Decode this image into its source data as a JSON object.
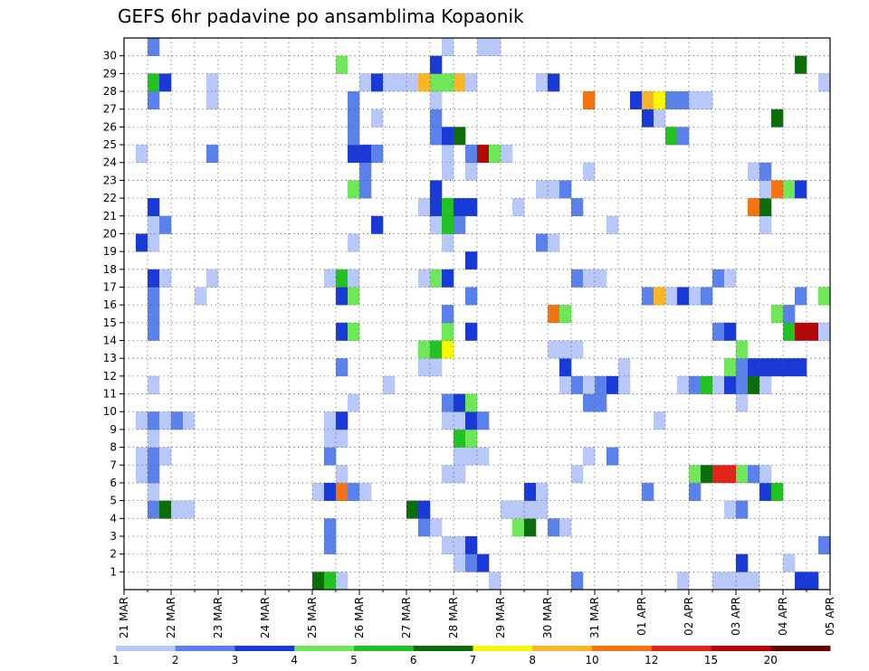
{
  "chart_data": {
    "type": "heatmap",
    "title": "GEFS 6hr padavine po ansamblima Kopaonik",
    "xlabel": "",
    "ylabel": "",
    "x_tick_labels": [
      "21 MAR",
      "22 MAR",
      "23 MAR",
      "24 MAR",
      "25 MAR",
      "26 MAR",
      "27 MAR",
      "28 MAR",
      "29 MAR",
      "30 MAR",
      "31 MAR",
      "01 APR",
      "02 APR",
      "03 APR",
      "04 APR",
      "05 APR"
    ],
    "y_tick_labels": [
      "1",
      "2",
      "3",
      "4",
      "5",
      "6",
      "7",
      "8",
      "9",
      "10",
      "11",
      "12",
      "13",
      "14",
      "15",
      "16",
      "17",
      "18",
      "19",
      "20",
      "21",
      "22",
      "23",
      "24",
      "25",
      "26",
      "27",
      "28",
      "29",
      "30"
    ],
    "steps_per_day": 4,
    "n_steps": 60,
    "n_members": 31,
    "grid": true,
    "colorbar": {
      "labels": [
        "1",
        "2",
        "3",
        "4",
        "5",
        "6",
        "7",
        "8",
        "10",
        "12",
        "15",
        "20"
      ],
      "colors": [
        "#b8c8f8",
        "#5a82ea",
        "#1a3ad8",
        "#6ee858",
        "#22c222",
        "#0b6e0b",
        "#f8f800",
        "#fcb428",
        "#f47414",
        "#e0261a",
        "#b40808",
        "#640000"
      ]
    },
    "cells": [
      {
        "t": 16,
        "m": 0,
        "c": 5
      },
      {
        "t": 17,
        "m": 0,
        "c": 4
      },
      {
        "t": 18,
        "m": 0,
        "c": 0
      },
      {
        "t": 31,
        "m": 0,
        "c": 0
      },
      {
        "t": 38,
        "m": 0,
        "c": 1
      },
      {
        "t": 47,
        "m": 0,
        "c": 0
      },
      {
        "t": 50,
        "m": 0,
        "c": 0
      },
      {
        "t": 51,
        "m": 0,
        "c": 0
      },
      {
        "t": 52,
        "m": 0,
        "c": 0
      },
      {
        "t": 53,
        "m": 0,
        "c": 0
      },
      {
        "t": 57,
        "m": 0,
        "c": 2
      },
      {
        "t": 58,
        "m": 0,
        "c": 2
      },
      {
        "t": 28,
        "m": 1,
        "c": 0
      },
      {
        "t": 29,
        "m": 1,
        "c": 1
      },
      {
        "t": 30,
        "m": 1,
        "c": 2
      },
      {
        "t": 52,
        "m": 1,
        "c": 2
      },
      {
        "t": 56,
        "m": 1,
        "c": 0
      },
      {
        "t": 17,
        "m": 2,
        "c": 1
      },
      {
        "t": 27,
        "m": 2,
        "c": 0
      },
      {
        "t": 28,
        "m": 2,
        "c": 0
      },
      {
        "t": 29,
        "m": 2,
        "c": 2
      },
      {
        "t": 59,
        "m": 2,
        "c": 1
      },
      {
        "t": 17,
        "m": 3,
        "c": 1
      },
      {
        "t": 25,
        "m": 3,
        "c": 1
      },
      {
        "t": 26,
        "m": 3,
        "c": 0
      },
      {
        "t": 33,
        "m": 3,
        "c": 3
      },
      {
        "t": 34,
        "m": 3,
        "c": 5
      },
      {
        "t": 36,
        "m": 3,
        "c": 1
      },
      {
        "t": 37,
        "m": 3,
        "c": 0
      },
      {
        "t": 2,
        "m": 4,
        "c": 1
      },
      {
        "t": 3,
        "m": 4,
        "c": 5
      },
      {
        "t": 4,
        "m": 4,
        "c": 0
      },
      {
        "t": 5,
        "m": 4,
        "c": 0
      },
      {
        "t": 24,
        "m": 4,
        "c": 5
      },
      {
        "t": 25,
        "m": 4,
        "c": 2
      },
      {
        "t": 32,
        "m": 4,
        "c": 0
      },
      {
        "t": 33,
        "m": 4,
        "c": 0
      },
      {
        "t": 34,
        "m": 4,
        "c": 0
      },
      {
        "t": 35,
        "m": 4,
        "c": 0
      },
      {
        "t": 51,
        "m": 4,
        "c": 0
      },
      {
        "t": 52,
        "m": 4,
        "c": 1
      },
      {
        "t": 2,
        "m": 5,
        "c": 0
      },
      {
        "t": 16,
        "m": 5,
        "c": 0
      },
      {
        "t": 17,
        "m": 5,
        "c": 2
      },
      {
        "t": 18,
        "m": 5,
        "c": 8
      },
      {
        "t": 19,
        "m": 5,
        "c": 1
      },
      {
        "t": 20,
        "m": 5,
        "c": 0
      },
      {
        "t": 34,
        "m": 5,
        "c": 2
      },
      {
        "t": 35,
        "m": 5,
        "c": 0
      },
      {
        "t": 44,
        "m": 5,
        "c": 1
      },
      {
        "t": 48,
        "m": 5,
        "c": 1
      },
      {
        "t": 54,
        "m": 5,
        "c": 2
      },
      {
        "t": 55,
        "m": 5,
        "c": 4
      },
      {
        "t": 1,
        "m": 6,
        "c": 0
      },
      {
        "t": 2,
        "m": 6,
        "c": 1
      },
      {
        "t": 18,
        "m": 6,
        "c": 0
      },
      {
        "t": 27,
        "m": 6,
        "c": 0
      },
      {
        "t": 28,
        "m": 6,
        "c": 0
      },
      {
        "t": 38,
        "m": 6,
        "c": 0
      },
      {
        "t": 48,
        "m": 6,
        "c": 3
      },
      {
        "t": 49,
        "m": 6,
        "c": 5
      },
      {
        "t": 50,
        "m": 6,
        "c": 9
      },
      {
        "t": 51,
        "m": 6,
        "c": 9
      },
      {
        "t": 52,
        "m": 6,
        "c": 3
      },
      {
        "t": 53,
        "m": 6,
        "c": 1
      },
      {
        "t": 54,
        "m": 6,
        "c": 0
      },
      {
        "t": 1,
        "m": 7,
        "c": 0
      },
      {
        "t": 2,
        "m": 7,
        "c": 1
      },
      {
        "t": 3,
        "m": 7,
        "c": 0
      },
      {
        "t": 17,
        "m": 7,
        "c": 1
      },
      {
        "t": 28,
        "m": 7,
        "c": 0
      },
      {
        "t": 29,
        "m": 7,
        "c": 0
      },
      {
        "t": 30,
        "m": 7,
        "c": 0
      },
      {
        "t": 39,
        "m": 7,
        "c": 0
      },
      {
        "t": 41,
        "m": 7,
        "c": 1
      },
      {
        "t": 2,
        "m": 8,
        "c": 0
      },
      {
        "t": 17,
        "m": 8,
        "c": 0
      },
      {
        "t": 18,
        "m": 8,
        "c": 0
      },
      {
        "t": 28,
        "m": 8,
        "c": 4
      },
      {
        "t": 29,
        "m": 8,
        "c": 3
      },
      {
        "t": 1,
        "m": 9,
        "c": 0
      },
      {
        "t": 2,
        "m": 9,
        "c": 1
      },
      {
        "t": 3,
        "m": 9,
        "c": 0
      },
      {
        "t": 4,
        "m": 9,
        "c": 1
      },
      {
        "t": 5,
        "m": 9,
        "c": 0
      },
      {
        "t": 17,
        "m": 9,
        "c": 0
      },
      {
        "t": 18,
        "m": 9,
        "c": 2
      },
      {
        "t": 27,
        "m": 9,
        "c": 0
      },
      {
        "t": 28,
        "m": 9,
        "c": 0
      },
      {
        "t": 29,
        "m": 9,
        "c": 2
      },
      {
        "t": 30,
        "m": 9,
        "c": 1
      },
      {
        "t": 45,
        "m": 9,
        "c": 0
      },
      {
        "t": 19,
        "m": 10,
        "c": 0
      },
      {
        "t": 27,
        "m": 10,
        "c": 1
      },
      {
        "t": 28,
        "m": 10,
        "c": 2
      },
      {
        "t": 29,
        "m": 10,
        "c": 3
      },
      {
        "t": 39,
        "m": 10,
        "c": 1
      },
      {
        "t": 40,
        "m": 10,
        "c": 1
      },
      {
        "t": 52,
        "m": 10,
        "c": 0
      },
      {
        "t": 2,
        "m": 11,
        "c": 0
      },
      {
        "t": 22,
        "m": 11,
        "c": 0
      },
      {
        "t": 37,
        "m": 11,
        "c": 0
      },
      {
        "t": 38,
        "m": 11,
        "c": 1
      },
      {
        "t": 39,
        "m": 11,
        "c": 0
      },
      {
        "t": 40,
        "m": 11,
        "c": 1
      },
      {
        "t": 41,
        "m": 11,
        "c": 2
      },
      {
        "t": 42,
        "m": 11,
        "c": 0
      },
      {
        "t": 47,
        "m": 11,
        "c": 0
      },
      {
        "t": 48,
        "m": 11,
        "c": 1
      },
      {
        "t": 49,
        "m": 11,
        "c": 4
      },
      {
        "t": 50,
        "m": 11,
        "c": 0
      },
      {
        "t": 51,
        "m": 11,
        "c": 2
      },
      {
        "t": 52,
        "m": 11,
        "c": 1
      },
      {
        "t": 53,
        "m": 11,
        "c": 5
      },
      {
        "t": 54,
        "m": 11,
        "c": 0
      },
      {
        "t": 18,
        "m": 12,
        "c": 1
      },
      {
        "t": 25,
        "m": 12,
        "c": 0
      },
      {
        "t": 26,
        "m": 12,
        "c": 0
      },
      {
        "t": 37,
        "m": 12,
        "c": 2
      },
      {
        "t": 42,
        "m": 12,
        "c": 0
      },
      {
        "t": 51,
        "m": 12,
        "c": 3
      },
      {
        "t": 52,
        "m": 12,
        "c": 1
      },
      {
        "t": 53,
        "m": 12,
        "c": 2
      },
      {
        "t": 54,
        "m": 12,
        "c": 2
      },
      {
        "t": 55,
        "m": 12,
        "c": 2
      },
      {
        "t": 56,
        "m": 12,
        "c": 2
      },
      {
        "t": 57,
        "m": 12,
        "c": 2
      },
      {
        "t": 25,
        "m": 13,
        "c": 3
      },
      {
        "t": 26,
        "m": 13,
        "c": 4
      },
      {
        "t": 27,
        "m": 13,
        "c": 6
      },
      {
        "t": 36,
        "m": 13,
        "c": 0
      },
      {
        "t": 37,
        "m": 13,
        "c": 0
      },
      {
        "t": 38,
        "m": 13,
        "c": 0
      },
      {
        "t": 52,
        "m": 13,
        "c": 3
      },
      {
        "t": 2,
        "m": 14,
        "c": 1
      },
      {
        "t": 18,
        "m": 14,
        "c": 2
      },
      {
        "t": 19,
        "m": 14,
        "c": 3
      },
      {
        "t": 27,
        "m": 14,
        "c": 3
      },
      {
        "t": 29,
        "m": 14,
        "c": 2
      },
      {
        "t": 50,
        "m": 14,
        "c": 1
      },
      {
        "t": 51,
        "m": 14,
        "c": 2
      },
      {
        "t": 56,
        "m": 14,
        "c": 4
      },
      {
        "t": 57,
        "m": 14,
        "c": 10
      },
      {
        "t": 58,
        "m": 14,
        "c": 10
      },
      {
        "t": 59,
        "m": 14,
        "c": 0
      },
      {
        "t": 2,
        "m": 15,
        "c": 1
      },
      {
        "t": 27,
        "m": 15,
        "c": 1
      },
      {
        "t": 36,
        "m": 15,
        "c": 8
      },
      {
        "t": 37,
        "m": 15,
        "c": 3
      },
      {
        "t": 55,
        "m": 15,
        "c": 3
      },
      {
        "t": 56,
        "m": 15,
        "c": 1
      },
      {
        "t": 2,
        "m": 16,
        "c": 1
      },
      {
        "t": 6,
        "m": 16,
        "c": 0
      },
      {
        "t": 18,
        "m": 16,
        "c": 2
      },
      {
        "t": 19,
        "m": 16,
        "c": 3
      },
      {
        "t": 29,
        "m": 16,
        "c": 1
      },
      {
        "t": 44,
        "m": 16,
        "c": 1
      },
      {
        "t": 45,
        "m": 16,
        "c": 7
      },
      {
        "t": 46,
        "m": 16,
        "c": 0
      },
      {
        "t": 47,
        "m": 16,
        "c": 2
      },
      {
        "t": 48,
        "m": 16,
        "c": 0
      },
      {
        "t": 49,
        "m": 16,
        "c": 1
      },
      {
        "t": 57,
        "m": 16,
        "c": 1
      },
      {
        "t": 59,
        "m": 16,
        "c": 3
      },
      {
        "t": 60,
        "m": 16,
        "c": 1
      },
      {
        "t": 2,
        "m": 17,
        "c": 2
      },
      {
        "t": 3,
        "m": 17,
        "c": 0
      },
      {
        "t": 7,
        "m": 17,
        "c": 0
      },
      {
        "t": 17,
        "m": 17,
        "c": 0
      },
      {
        "t": 18,
        "m": 17,
        "c": 4
      },
      {
        "t": 19,
        "m": 17,
        "c": 0
      },
      {
        "t": 25,
        "m": 17,
        "c": 0
      },
      {
        "t": 26,
        "m": 17,
        "c": 3
      },
      {
        "t": 27,
        "m": 17,
        "c": 2
      },
      {
        "t": 38,
        "m": 17,
        "c": 1
      },
      {
        "t": 39,
        "m": 17,
        "c": 0
      },
      {
        "t": 40,
        "m": 17,
        "c": 0
      },
      {
        "t": 50,
        "m": 17,
        "c": 1
      },
      {
        "t": 51,
        "m": 17,
        "c": 0
      },
      {
        "t": 29,
        "m": 18,
        "c": 2
      },
      {
        "t": 1,
        "m": 19,
        "c": 2
      },
      {
        "t": 2,
        "m": 19,
        "c": 0
      },
      {
        "t": 19,
        "m": 19,
        "c": 0
      },
      {
        "t": 27,
        "m": 19,
        "c": 0
      },
      {
        "t": 35,
        "m": 19,
        "c": 1
      },
      {
        "t": 36,
        "m": 19,
        "c": 0
      },
      {
        "t": 2,
        "m": 20,
        "c": 0
      },
      {
        "t": 3,
        "m": 20,
        "c": 1
      },
      {
        "t": 21,
        "m": 20,
        "c": 2
      },
      {
        "t": 26,
        "m": 20,
        "c": 0
      },
      {
        "t": 27,
        "m": 20,
        "c": 4
      },
      {
        "t": 28,
        "m": 20,
        "c": 1
      },
      {
        "t": 41,
        "m": 20,
        "c": 0
      },
      {
        "t": 54,
        "m": 20,
        "c": 0
      },
      {
        "t": 2,
        "m": 21,
        "c": 2
      },
      {
        "t": 25,
        "m": 21,
        "c": 0
      },
      {
        "t": 26,
        "m": 21,
        "c": 2
      },
      {
        "t": 27,
        "m": 21,
        "c": 4
      },
      {
        "t": 28,
        "m": 21,
        "c": 2
      },
      {
        "t": 29,
        "m": 21,
        "c": 2
      },
      {
        "t": 33,
        "m": 21,
        "c": 0
      },
      {
        "t": 38,
        "m": 21,
        "c": 1
      },
      {
        "t": 53,
        "m": 21,
        "c": 8
      },
      {
        "t": 54,
        "m": 21,
        "c": 5
      },
      {
        "t": 19,
        "m": 22,
        "c": 3
      },
      {
        "t": 20,
        "m": 22,
        "c": 1
      },
      {
        "t": 26,
        "m": 22,
        "c": 2
      },
      {
        "t": 35,
        "m": 22,
        "c": 0
      },
      {
        "t": 36,
        "m": 22,
        "c": 0
      },
      {
        "t": 37,
        "m": 22,
        "c": 1
      },
      {
        "t": 54,
        "m": 22,
        "c": 0
      },
      {
        "t": 55,
        "m": 22,
        "c": 8
      },
      {
        "t": 56,
        "m": 22,
        "c": 3
      },
      {
        "t": 57,
        "m": 22,
        "c": 2
      },
      {
        "t": 20,
        "m": 23,
        "c": 1
      },
      {
        "t": 27,
        "m": 23,
        "c": 0
      },
      {
        "t": 29,
        "m": 23,
        "c": 0
      },
      {
        "t": 39,
        "m": 23,
        "c": 0
      },
      {
        "t": 53,
        "m": 23,
        "c": 0
      },
      {
        "t": 54,
        "m": 23,
        "c": 1
      },
      {
        "t": 1,
        "m": 24,
        "c": 0
      },
      {
        "t": 7,
        "m": 24,
        "c": 1
      },
      {
        "t": 19,
        "m": 24,
        "c": 2
      },
      {
        "t": 20,
        "m": 24,
        "c": 2
      },
      {
        "t": 21,
        "m": 24,
        "c": 1
      },
      {
        "t": 27,
        "m": 24,
        "c": 0
      },
      {
        "t": 29,
        "m": 24,
        "c": 1
      },
      {
        "t": 30,
        "m": 24,
        "c": 10
      },
      {
        "t": 31,
        "m": 24,
        "c": 3
      },
      {
        "t": 32,
        "m": 24,
        "c": 0
      },
      {
        "t": 19,
        "m": 25,
        "c": 1
      },
      {
        "t": 26,
        "m": 25,
        "c": 1
      },
      {
        "t": 27,
        "m": 25,
        "c": 2
      },
      {
        "t": 28,
        "m": 25,
        "c": 5
      },
      {
        "t": 46,
        "m": 25,
        "c": 4
      },
      {
        "t": 47,
        "m": 25,
        "c": 1
      },
      {
        "t": 19,
        "m": 26,
        "c": 1
      },
      {
        "t": 21,
        "m": 26,
        "c": 0
      },
      {
        "t": 26,
        "m": 26,
        "c": 1
      },
      {
        "t": 44,
        "m": 26,
        "c": 2
      },
      {
        "t": 45,
        "m": 26,
        "c": 0
      },
      {
        "t": 55,
        "m": 26,
        "c": 5
      },
      {
        "t": 2,
        "m": 27,
        "c": 1
      },
      {
        "t": 7,
        "m": 27,
        "c": 0
      },
      {
        "t": 19,
        "m": 27,
        "c": 1
      },
      {
        "t": 26,
        "m": 27,
        "c": 0
      },
      {
        "t": 39,
        "m": 27,
        "c": 8
      },
      {
        "t": 43,
        "m": 27,
        "c": 2
      },
      {
        "t": 44,
        "m": 27,
        "c": 7
      },
      {
        "t": 45,
        "m": 27,
        "c": 6
      },
      {
        "t": 46,
        "m": 27,
        "c": 1
      },
      {
        "t": 47,
        "m": 27,
        "c": 1
      },
      {
        "t": 48,
        "m": 27,
        "c": 0
      },
      {
        "t": 49,
        "m": 27,
        "c": 0
      },
      {
        "t": 2,
        "m": 28,
        "c": 4
      },
      {
        "t": 3,
        "m": 28,
        "c": 2
      },
      {
        "t": 7,
        "m": 28,
        "c": 0
      },
      {
        "t": 20,
        "m": 28,
        "c": 0
      },
      {
        "t": 21,
        "m": 28,
        "c": 2
      },
      {
        "t": 22,
        "m": 28,
        "c": 0
      },
      {
        "t": 23,
        "m": 28,
        "c": 0
      },
      {
        "t": 24,
        "m": 28,
        "c": 0
      },
      {
        "t": 25,
        "m": 28,
        "c": 7
      },
      {
        "t": 26,
        "m": 28,
        "c": 3
      },
      {
        "t": 27,
        "m": 28,
        "c": 3
      },
      {
        "t": 28,
        "m": 28,
        "c": 7
      },
      {
        "t": 29,
        "m": 28,
        "c": 0
      },
      {
        "t": 35,
        "m": 28,
        "c": 0
      },
      {
        "t": 36,
        "m": 28,
        "c": 2
      },
      {
        "t": 59,
        "m": 28,
        "c": 0
      },
      {
        "t": 60,
        "m": 28,
        "c": 3
      },
      {
        "t": 18,
        "m": 29,
        "c": 3
      },
      {
        "t": 26,
        "m": 29,
        "c": 2
      },
      {
        "t": 57,
        "m": 29,
        "c": 5
      },
      {
        "t": 2,
        "m": 30,
        "c": 1
      },
      {
        "t": 27,
        "m": 30,
        "c": 0
      },
      {
        "t": 30,
        "m": 30,
        "c": 0
      },
      {
        "t": 31,
        "m": 30,
        "c": 0
      },
      {
        "t": 60,
        "m": 30,
        "c": 1
      }
    ]
  }
}
